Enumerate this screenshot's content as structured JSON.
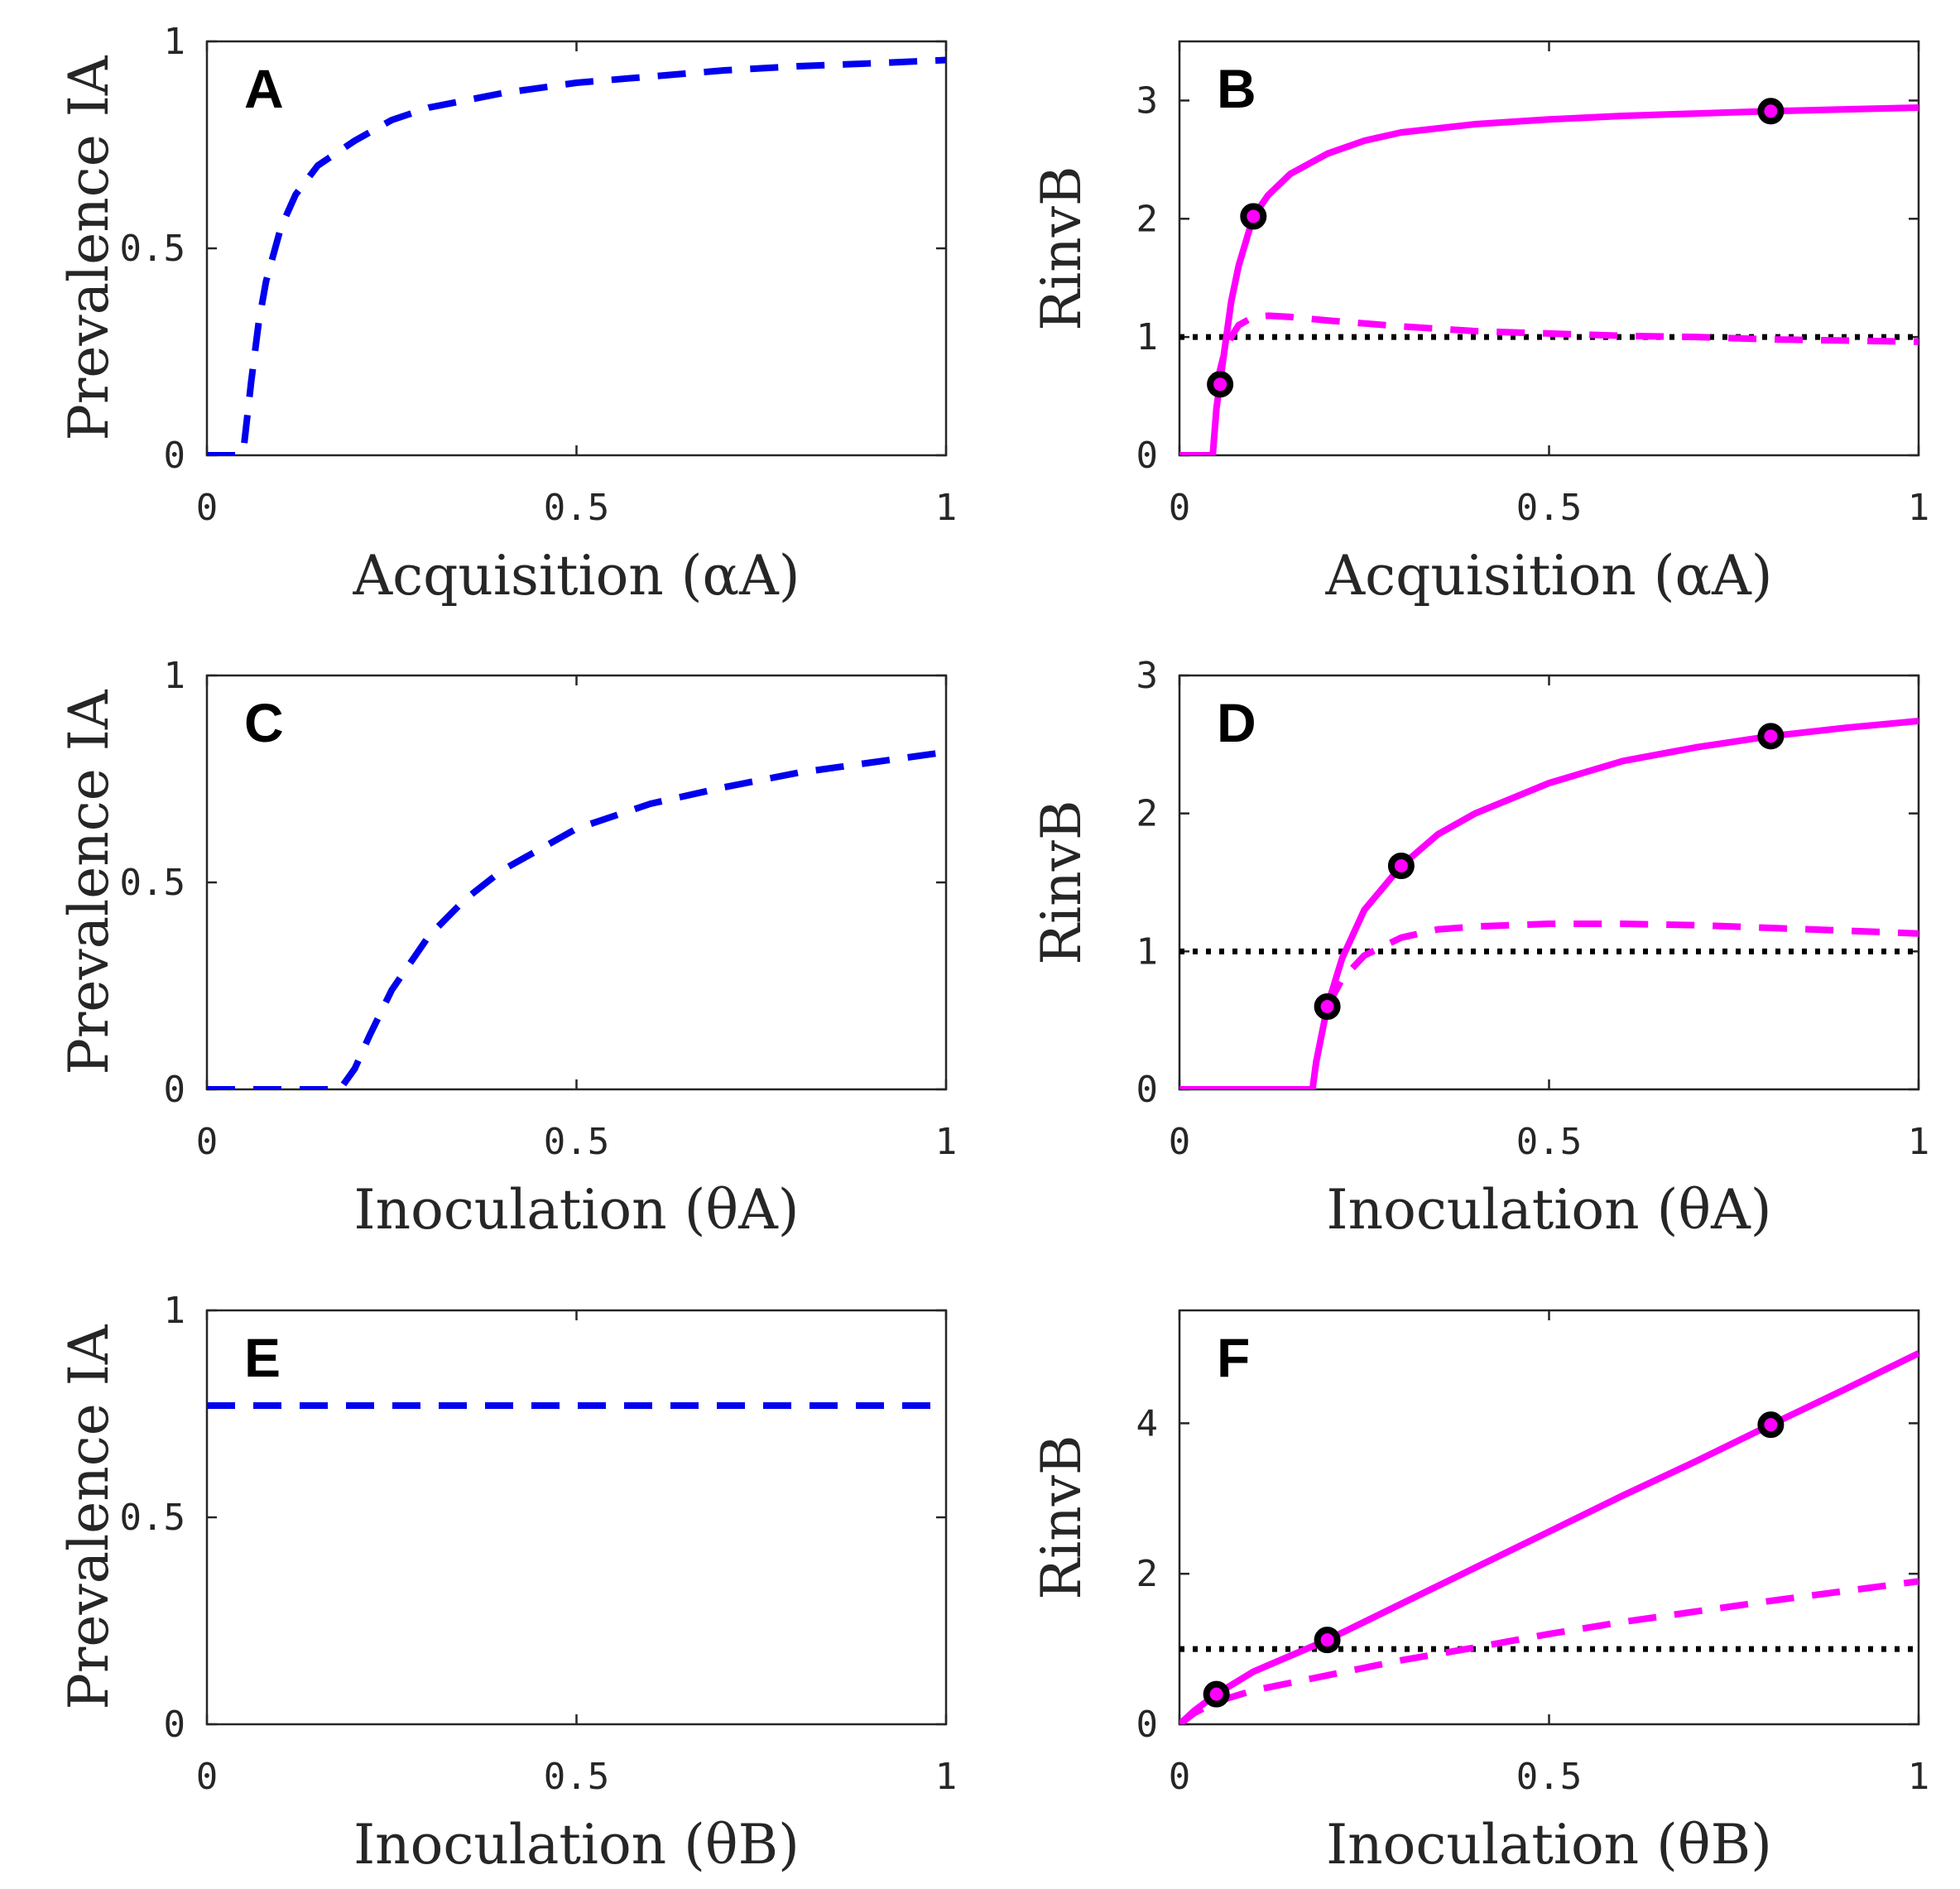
{
  "figure": {
    "colors": {
      "blue": "#0000ee",
      "magenta": "#ff00ff",
      "black": "#000000",
      "axis": "#262626"
    }
  },
  "chart_data": [
    {
      "id": "A",
      "type": "line",
      "panel_label": "A",
      "xlabel": "Acquisition (αA)",
      "ylabel": "Prevalence IA",
      "xlim": [
        0,
        1
      ],
      "ylim": [
        0,
        1
      ],
      "xticks": [
        0,
        0.5,
        1
      ],
      "xtick_labels": [
        "0",
        "0.5",
        "1"
      ],
      "yticks": [
        0,
        0.5,
        1
      ],
      "ytick_labels": [
        "0",
        "0.5",
        "1"
      ],
      "series": [
        {
          "name": "Prevalence IA",
          "style": "dashed",
          "color": "#0000ee",
          "x": [
            0,
            0.045,
            0.05,
            0.06,
            0.07,
            0.08,
            0.1,
            0.12,
            0.15,
            0.2,
            0.25,
            0.3,
            0.4,
            0.5,
            0.6,
            0.7,
            0.8,
            0.9,
            1.0
          ],
          "y": [
            0,
            0,
            0.02,
            0.18,
            0.32,
            0.42,
            0.55,
            0.63,
            0.7,
            0.76,
            0.81,
            0.84,
            0.875,
            0.9,
            0.915,
            0.93,
            0.94,
            0.947,
            0.955
          ]
        }
      ],
      "markers": [],
      "hline": null
    },
    {
      "id": "B",
      "type": "line",
      "panel_label": "B",
      "xlabel": "Acquisition (αA)",
      "ylabel": "RinvB",
      "xlim": [
        0,
        1
      ],
      "ylim": [
        0,
        3.5
      ],
      "xticks": [
        0,
        0.5,
        1
      ],
      "xtick_labels": [
        "0",
        "0.5",
        "1"
      ],
      "yticks": [
        0,
        1,
        2,
        3
      ],
      "ytick_labels": [
        "0",
        "1",
        "2",
        "3"
      ],
      "series": [
        {
          "name": "RinvB solid",
          "style": "solid",
          "color": "#ff00ff",
          "x": [
            0,
            0.04,
            0.045,
            0.05,
            0.06,
            0.07,
            0.08,
            0.1,
            0.12,
            0.15,
            0.2,
            0.25,
            0.3,
            0.4,
            0.5,
            0.6,
            0.7,
            0.8,
            0.9,
            1.0
          ],
          "y": [
            0,
            0,
            0.0,
            0.4,
            0.85,
            1.3,
            1.6,
            2.02,
            2.2,
            2.38,
            2.55,
            2.66,
            2.73,
            2.8,
            2.84,
            2.87,
            2.89,
            2.91,
            2.925,
            2.94
          ]
        },
        {
          "name": "RinvB dashed",
          "style": "dashed",
          "color": "#ff00ff",
          "x": [
            0.05,
            0.06,
            0.07,
            0.08,
            0.1,
            0.12,
            0.15,
            0.2,
            0.3,
            0.4,
            0.5,
            0.6,
            0.7,
            0.8,
            0.9,
            1.0
          ],
          "y": [
            0.6,
            0.85,
            1.0,
            1.1,
            1.17,
            1.18,
            1.17,
            1.14,
            1.09,
            1.05,
            1.03,
            1.01,
            1.0,
            0.98,
            0.97,
            0.96
          ]
        }
      ],
      "markers": [
        {
          "x": 0.055,
          "y": 0.6
        },
        {
          "x": 0.1,
          "y": 2.02
        },
        {
          "x": 0.8,
          "y": 2.91
        }
      ],
      "hline": {
        "y": 1,
        "style": "dotted",
        "color": "#000000"
      }
    },
    {
      "id": "C",
      "type": "line",
      "panel_label": "C",
      "xlabel": "Inoculation (θA)",
      "ylabel": "Prevalence IA",
      "xlim": [
        0,
        1
      ],
      "ylim": [
        0,
        1
      ],
      "xticks": [
        0,
        0.5,
        1
      ],
      "xtick_labels": [
        "0",
        "0.5",
        "1"
      ],
      "yticks": [
        0,
        0.5,
        1
      ],
      "ytick_labels": [
        "0",
        "0.5",
        "1"
      ],
      "series": [
        {
          "name": "Prevalence IA",
          "style": "dashed",
          "color": "#0000ee",
          "x": [
            0,
            0.18,
            0.2,
            0.22,
            0.25,
            0.3,
            0.35,
            0.4,
            0.45,
            0.5,
            0.6,
            0.7,
            0.8,
            0.9,
            1.0
          ],
          "y": [
            0,
            0,
            0.05,
            0.13,
            0.24,
            0.37,
            0.46,
            0.53,
            0.58,
            0.63,
            0.69,
            0.73,
            0.765,
            0.79,
            0.815
          ]
        }
      ],
      "markers": [],
      "hline": null
    },
    {
      "id": "D",
      "type": "line",
      "panel_label": "D",
      "xlabel": "Inoculation (θA)",
      "ylabel": "RinvB",
      "xlim": [
        0,
        1
      ],
      "ylim": [
        0,
        3
      ],
      "xticks": [
        0,
        0.5,
        1
      ],
      "xtick_labels": [
        "0",
        "0.5",
        "1"
      ],
      "yticks": [
        0,
        1,
        2,
        3
      ],
      "ytick_labels": [
        "0",
        "1",
        "2",
        "3"
      ],
      "series": [
        {
          "name": "RinvB solid",
          "style": "solid",
          "color": "#ff00ff",
          "x": [
            0,
            0.18,
            0.185,
            0.2,
            0.22,
            0.25,
            0.3,
            0.35,
            0.4,
            0.5,
            0.6,
            0.7,
            0.8,
            0.9,
            1.0
          ],
          "y": [
            0,
            0,
            0.2,
            0.6,
            0.95,
            1.3,
            1.62,
            1.85,
            2.0,
            2.22,
            2.38,
            2.48,
            2.56,
            2.62,
            2.67
          ]
        },
        {
          "name": "RinvB dashed",
          "style": "dashed",
          "color": "#ff00ff",
          "x": [
            0.2,
            0.22,
            0.25,
            0.3,
            0.35,
            0.4,
            0.5,
            0.6,
            0.7,
            0.8,
            0.9,
            1.0
          ],
          "y": [
            0.6,
            0.8,
            0.97,
            1.1,
            1.16,
            1.18,
            1.2,
            1.2,
            1.19,
            1.17,
            1.15,
            1.13
          ]
        }
      ],
      "markers": [
        {
          "x": 0.2,
          "y": 0.6
        },
        {
          "x": 0.3,
          "y": 1.62
        },
        {
          "x": 0.8,
          "y": 2.56
        }
      ],
      "hline": {
        "y": 1,
        "style": "dotted",
        "color": "#000000"
      }
    },
    {
      "id": "E",
      "type": "line",
      "panel_label": "E",
      "xlabel": "Inoculation (θB)",
      "ylabel": "Prevalence IA",
      "xlim": [
        0,
        1
      ],
      "ylim": [
        0,
        1
      ],
      "xticks": [
        0,
        0.5,
        1
      ],
      "xtick_labels": [
        "0",
        "0.5",
        "1"
      ],
      "yticks": [
        0,
        0.5,
        1
      ],
      "ytick_labels": [
        "0",
        "0.5",
        "1"
      ],
      "series": [
        {
          "name": "Prevalence IA",
          "style": "dashed",
          "color": "#0000ee",
          "x": [
            0,
            1
          ],
          "y": [
            0.77,
            0.77
          ]
        }
      ],
      "markers": [],
      "hline": null
    },
    {
      "id": "F",
      "type": "line",
      "panel_label": "F",
      "xlabel": "Inoculation (θB)",
      "ylabel": "RinvB",
      "xlim": [
        0,
        1
      ],
      "ylim": [
        0,
        5.5
      ],
      "xticks": [
        0,
        0.5,
        1
      ],
      "xtick_labels": [
        "0",
        "0.5",
        "1"
      ],
      "yticks": [
        0,
        2,
        4
      ],
      "ytick_labels": [
        "0",
        "2",
        "4"
      ],
      "series": [
        {
          "name": "RinvB solid",
          "style": "solid",
          "color": "#ff00ff",
          "x": [
            0,
            0.02,
            0.05,
            0.1,
            0.2,
            0.3,
            0.4,
            0.5,
            0.6,
            0.7,
            0.8,
            0.9,
            1.0
          ],
          "y": [
            0,
            0.18,
            0.4,
            0.7,
            1.12,
            1.6,
            2.08,
            2.56,
            3.04,
            3.5,
            3.98,
            4.45,
            4.93
          ]
        },
        {
          "name": "RinvB dashed",
          "style": "dashed",
          "color": "#ff00ff",
          "x": [
            0,
            0.02,
            0.05,
            0.1,
            0.2,
            0.3,
            0.4,
            0.5,
            0.6,
            0.7,
            0.8,
            0.9,
            1.0
          ],
          "y": [
            0,
            0.15,
            0.3,
            0.45,
            0.65,
            0.85,
            1.02,
            1.2,
            1.36,
            1.5,
            1.64,
            1.77,
            1.9
          ]
        }
      ],
      "markers": [
        {
          "x": 0.05,
          "y": 0.4
        },
        {
          "x": 0.2,
          "y": 1.12
        },
        {
          "x": 0.8,
          "y": 3.98
        }
      ],
      "hline": {
        "y": 1,
        "style": "dotted",
        "color": "#000000"
      }
    }
  ]
}
